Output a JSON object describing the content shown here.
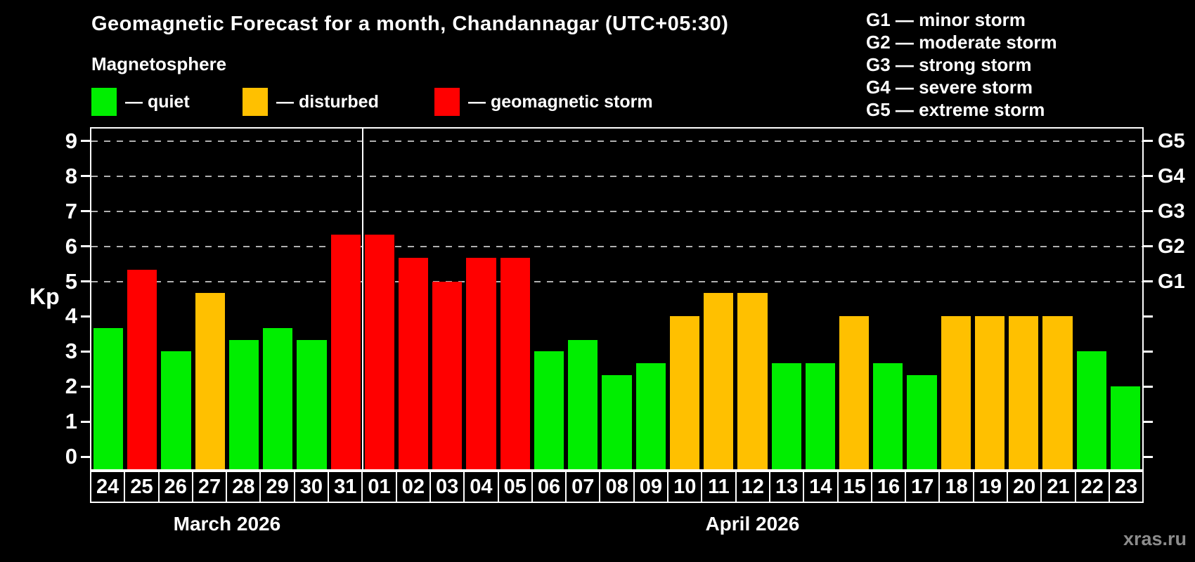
{
  "title": "Geomagnetic Forecast for a month, Chandannagar (UTC+05:30)",
  "watermark": "xras.ru",
  "legend": {
    "heading": "Magnetosphere",
    "items": [
      {
        "label": "— quiet",
        "status": "quiet",
        "color": "#00ee00"
      },
      {
        "label": "— disturbed",
        "status": "disturbed",
        "color": "#ffc000"
      },
      {
        "label": "— geomagnetic storm",
        "status": "storm",
        "color": "#ff0000"
      }
    ]
  },
  "g_legend": [
    "G1 — minor storm",
    "G2 — moderate storm",
    "G3 — strong storm",
    "G4 — severe storm",
    "G5 — extreme storm"
  ],
  "axis": {
    "kp_label": "Kp",
    "y_ticks": [
      0,
      1,
      2,
      3,
      4,
      5,
      6,
      7,
      8,
      9
    ],
    "g_ticks": [
      {
        "kp": 5,
        "label": "G1"
      },
      {
        "kp": 6,
        "label": "G2"
      },
      {
        "kp": 7,
        "label": "G3"
      },
      {
        "kp": 8,
        "label": "G4"
      },
      {
        "kp": 9,
        "label": "G5"
      }
    ]
  },
  "chart_data": {
    "type": "bar",
    "title": "Geomagnetic Forecast for a month, Chandannagar (UTC+05:30)",
    "ylabel": "Kp",
    "ylim": [
      -0.36,
      9.36
    ],
    "grid": "dashed horizontal lines at Kp 5-9 (G1-G5 levels)",
    "grid_kp": [
      5,
      6,
      7,
      8,
      9
    ],
    "legend_position": "top",
    "categories": [
      "24",
      "25",
      "26",
      "27",
      "28",
      "29",
      "30",
      "31",
      "01",
      "02",
      "03",
      "04",
      "05",
      "06",
      "07",
      "08",
      "09",
      "10",
      "11",
      "12",
      "13",
      "14",
      "15",
      "16",
      "17",
      "18",
      "19",
      "20",
      "21",
      "22",
      "23"
    ],
    "values": [
      3.67,
      5.33,
      3.0,
      4.67,
      3.33,
      3.67,
      3.33,
      6.33,
      6.33,
      5.67,
      5.0,
      5.67,
      5.67,
      3.0,
      3.33,
      2.33,
      2.67,
      4.0,
      4.67,
      4.67,
      2.67,
      2.67,
      4.0,
      2.67,
      2.33,
      4.0,
      4.0,
      4.0,
      4.0,
      3.0,
      2.0
    ],
    "statuses": [
      "quiet",
      "storm",
      "quiet",
      "disturbed",
      "quiet",
      "quiet",
      "quiet",
      "storm",
      "storm",
      "storm",
      "storm",
      "storm",
      "storm",
      "quiet",
      "quiet",
      "quiet",
      "quiet",
      "disturbed",
      "disturbed",
      "disturbed",
      "quiet",
      "quiet",
      "disturbed",
      "quiet",
      "quiet",
      "disturbed",
      "disturbed",
      "disturbed",
      "disturbed",
      "quiet",
      "quiet"
    ],
    "status_colors": {
      "quiet": "#00ee00",
      "disturbed": "#ffc000",
      "storm": "#ff0000"
    },
    "months": [
      {
        "label": "March 2026",
        "days": 8
      },
      {
        "label": "April 2026",
        "days": 23
      }
    ]
  }
}
